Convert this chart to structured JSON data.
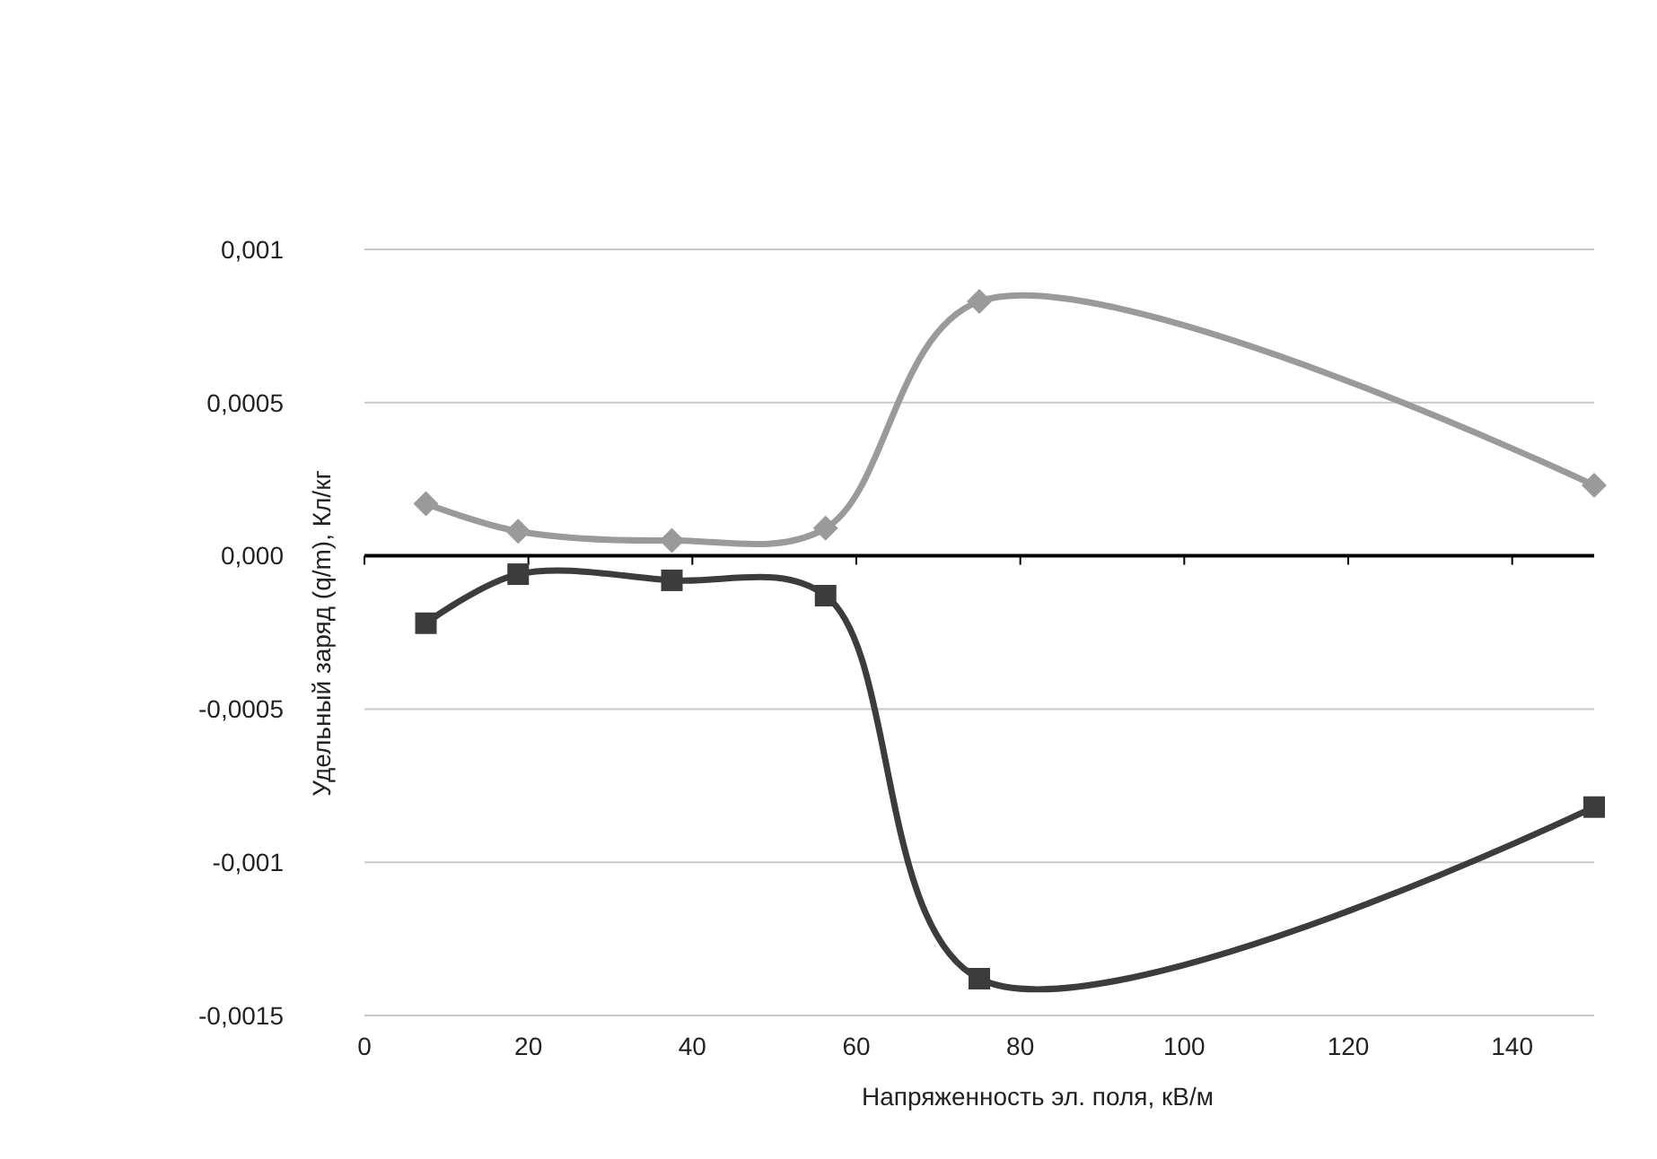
{
  "chart_data": {
    "type": "line",
    "xlabel": "Напряженность эл. поля, кВ/м",
    "ylabel": "Удельный заряд (q/m), Кл/кг",
    "xlim": [
      0,
      150
    ],
    "xticks": [
      0,
      20,
      40,
      60,
      80,
      100,
      120,
      140
    ],
    "ylim": [
      -0.0015,
      0.001
    ],
    "yticks": [
      {
        "value": 0.001,
        "label": "0,001"
      },
      {
        "value": 0.0005,
        "label": "0,0005"
      },
      {
        "value": 0,
        "label": "0,000"
      },
      {
        "value": -0.0005,
        "label": "-0,0005"
      },
      {
        "value": -0.001,
        "label": "-0,001"
      },
      {
        "value": -0.0015,
        "label": "-0,0015"
      }
    ],
    "grid": "y",
    "x": [
      7.5,
      18.75,
      37.5,
      56.25,
      75,
      150
    ],
    "series": [
      {
        "color": "#9a9a9a",
        "marker": "diamond",
        "values": [
          0.00017,
          8e-05,
          5e-05,
          9e-05,
          0.00083,
          0.00023
        ]
      },
      {
        "color": "#3c3c3c",
        "marker": "square",
        "values": [
          -0.00022,
          -6e-05,
          -8e-05,
          -0.00013,
          -0.00138,
          -0.00082
        ]
      }
    ]
  }
}
